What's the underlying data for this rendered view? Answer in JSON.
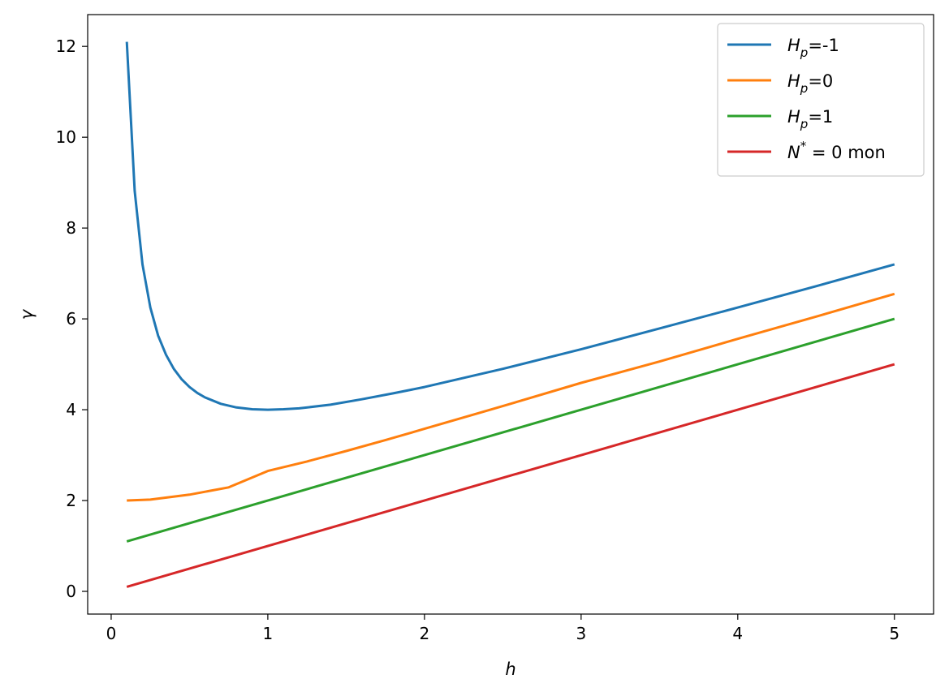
{
  "chart_data": {
    "type": "line",
    "title": "",
    "xlabel": "h",
    "ylabel": "γ",
    "xlim": [
      -0.15,
      5.25
    ],
    "ylim": [
      -0.5,
      12.7
    ],
    "xticks": [
      0,
      1,
      2,
      3,
      4,
      5
    ],
    "yticks": [
      0,
      2,
      4,
      6,
      8,
      10,
      12
    ],
    "grid": false,
    "legend_position": "top-right",
    "series": [
      {
        "name": "H_p=-1",
        "legend": {
          "base": "H",
          "sub": "p",
          "rest": "=-1"
        },
        "color": "#1f77b4",
        "x": [
          0.1,
          0.15,
          0.2,
          0.25,
          0.3,
          0.35,
          0.4,
          0.45,
          0.5,
          0.55,
          0.6,
          0.7,
          0.8,
          0.9,
          1.0,
          1.1,
          1.2,
          1.4,
          1.6,
          1.8,
          2.0,
          2.5,
          3.0,
          3.5,
          4.0,
          4.5,
          5.0
        ],
        "y": [
          12.1,
          8.82,
          7.2,
          6.25,
          5.63,
          5.21,
          4.9,
          4.67,
          4.5,
          4.37,
          4.27,
          4.13,
          4.05,
          4.01,
          4.0,
          4.01,
          4.03,
          4.11,
          4.23,
          4.36,
          4.5,
          4.9,
          5.33,
          5.79,
          6.25,
          6.72,
          7.2
        ]
      },
      {
        "name": "H_p=0",
        "legend": {
          "base": "H",
          "sub": "p",
          "rest": "=0"
        },
        "color": "#ff7f0e",
        "x": [
          0.1,
          0.25,
          0.5,
          0.75,
          1.0,
          1.25,
          1.5,
          1.75,
          2.0,
          2.5,
          3.0,
          3.5,
          4.0,
          4.5,
          5.0
        ],
        "y": [
          2.0,
          2.02,
          2.13,
          2.29,
          2.65,
          2.86,
          3.09,
          3.33,
          3.58,
          4.08,
          4.59,
          5.06,
          5.56,
          6.05,
          6.55
        ]
      },
      {
        "name": "H_p=1",
        "legend": {
          "base": "H",
          "sub": "p",
          "rest": "=1"
        },
        "color": "#2ca02c",
        "x": [
          0.1,
          5.0
        ],
        "y": [
          1.1,
          6.0
        ]
      },
      {
        "name": "N^* = 0 mon",
        "legend": {
          "base": "N",
          "sup": "*",
          "rest": " = 0 mon"
        },
        "color": "#d62728",
        "x": [
          0.1,
          5.0
        ],
        "y": [
          0.1,
          5.0
        ]
      }
    ]
  }
}
